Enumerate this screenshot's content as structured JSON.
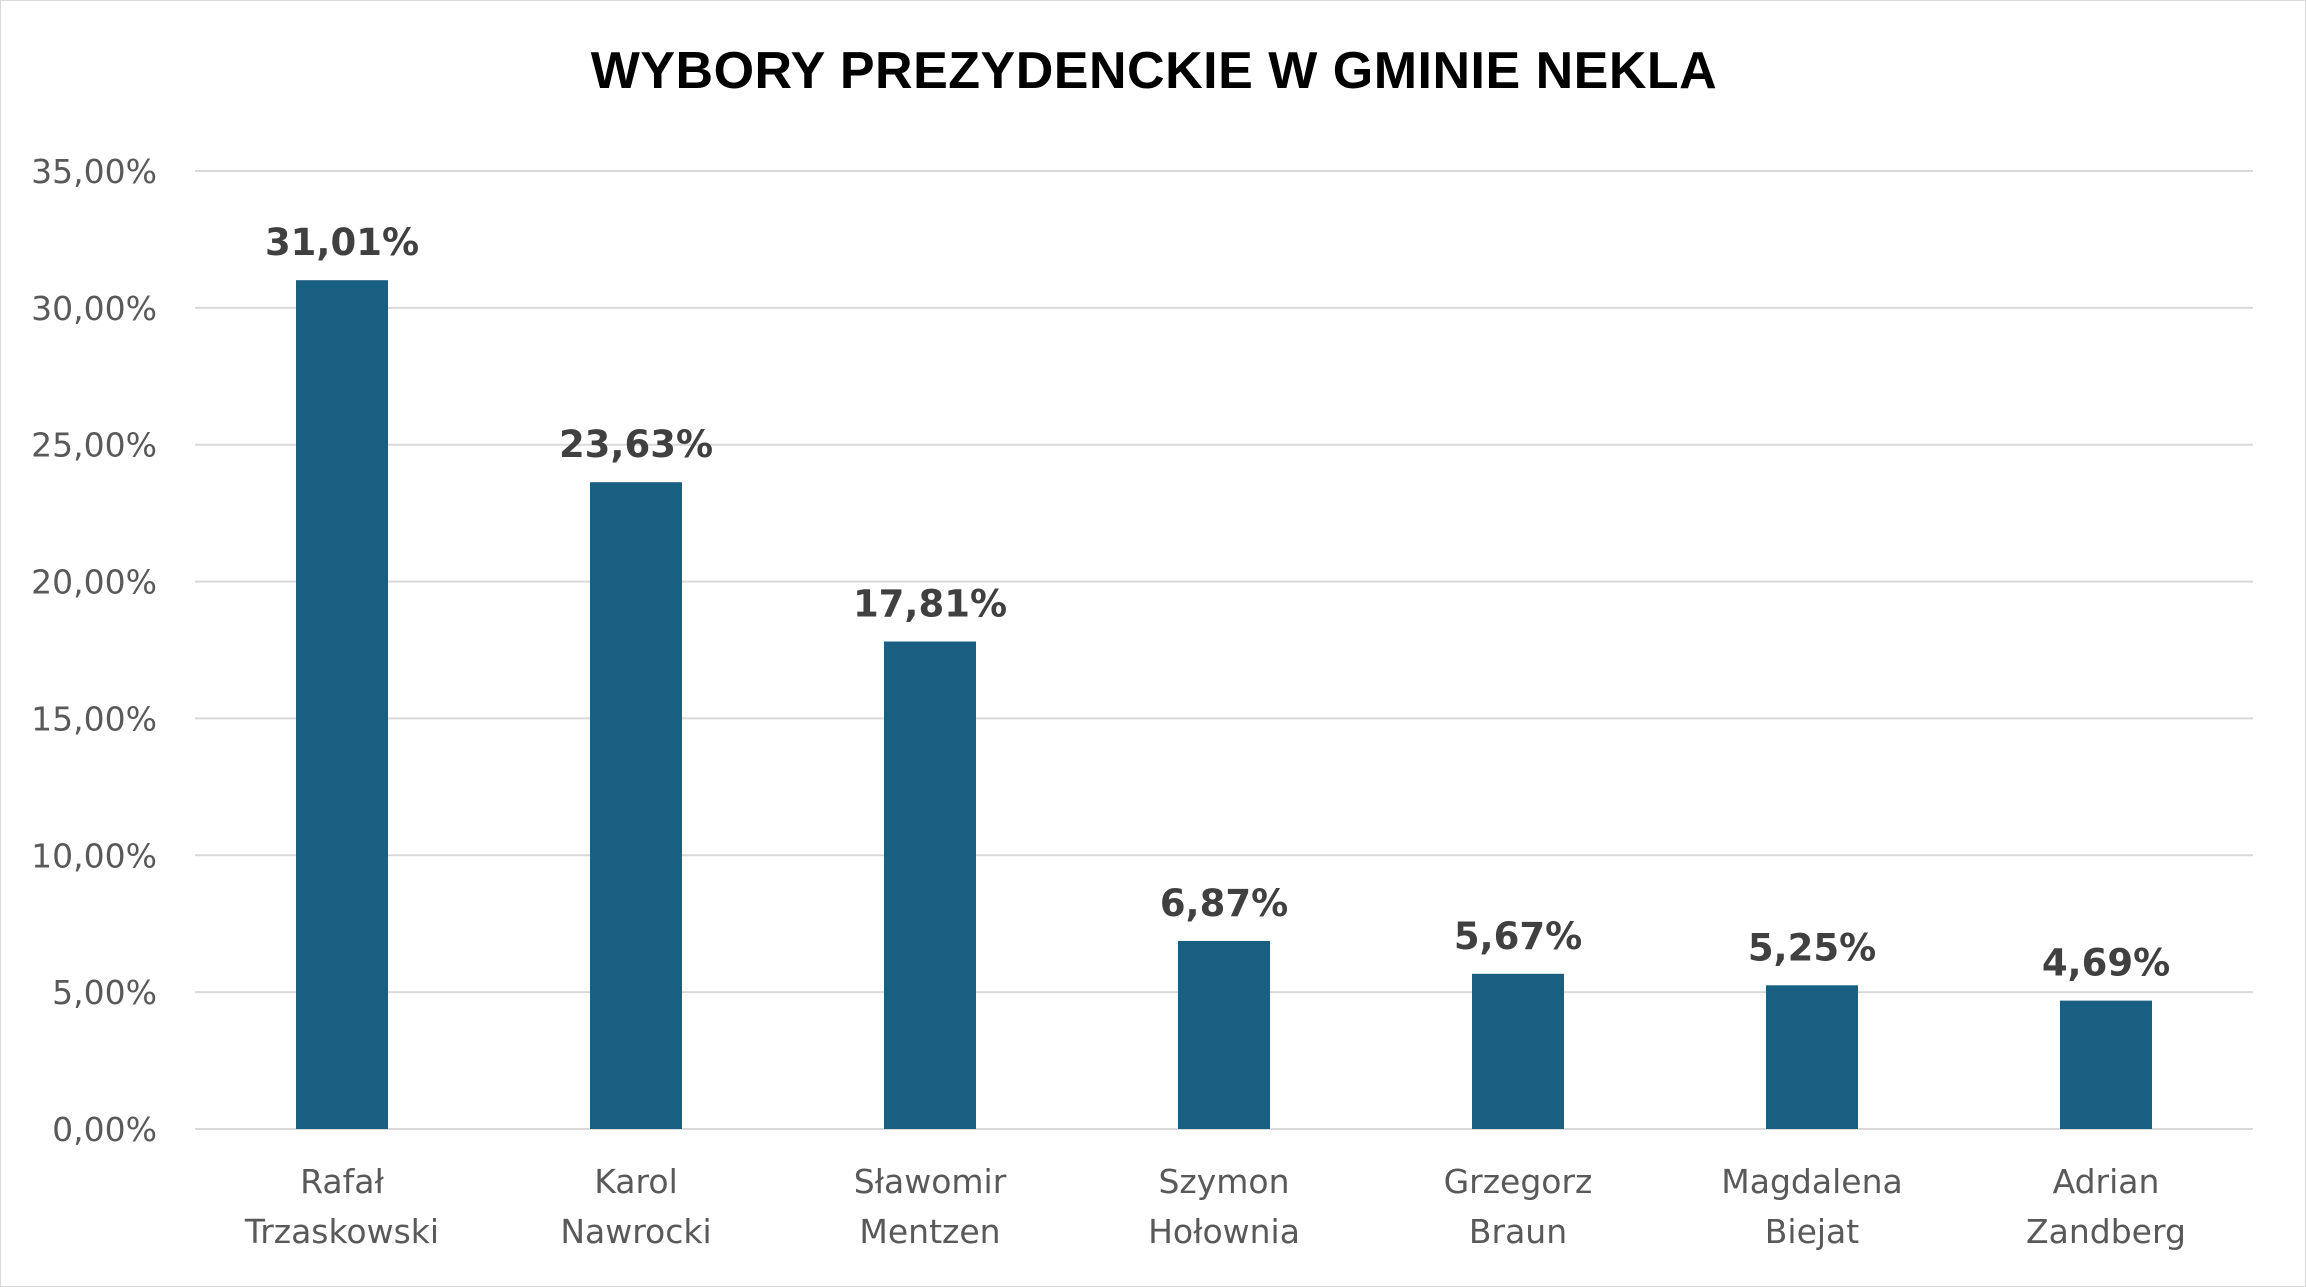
{
  "chart_data": {
    "type": "bar",
    "title": "WYBORY PREZYDENCKIE W GMINIE NEKLA",
    "xlabel": "",
    "ylabel": "",
    "categories": [
      [
        "Rafał",
        "Trzaskowski"
      ],
      [
        "Karol",
        "Nawrocki"
      ],
      [
        "Sławomir",
        "Mentzen"
      ],
      [
        "Szymon",
        "Hołownia"
      ],
      [
        "Grzegorz",
        "Braun"
      ],
      [
        "Magdalena",
        "Biejat"
      ],
      [
        "Adrian",
        "Zandberg"
      ]
    ],
    "values": [
      31.01,
      23.63,
      17.81,
      6.87,
      5.67,
      5.25,
      4.69
    ],
    "data_labels": [
      "31,01%",
      "23,63%",
      "17,81%",
      "6,87%",
      "5,67%",
      "5,25%",
      "4,69%"
    ],
    "ylim": [
      0,
      35
    ],
    "yticks": [
      0,
      5,
      10,
      15,
      20,
      25,
      30,
      35
    ],
    "ytick_labels": [
      "0,00%",
      "5,00%",
      "10,00%",
      "15,00%",
      "20,00%",
      "25,00%",
      "30,00%",
      "35,00%"
    ],
    "grid": true,
    "legend": "none",
    "colors": {
      "bar": "#185f82",
      "grid": "#d9d9d9"
    }
  }
}
